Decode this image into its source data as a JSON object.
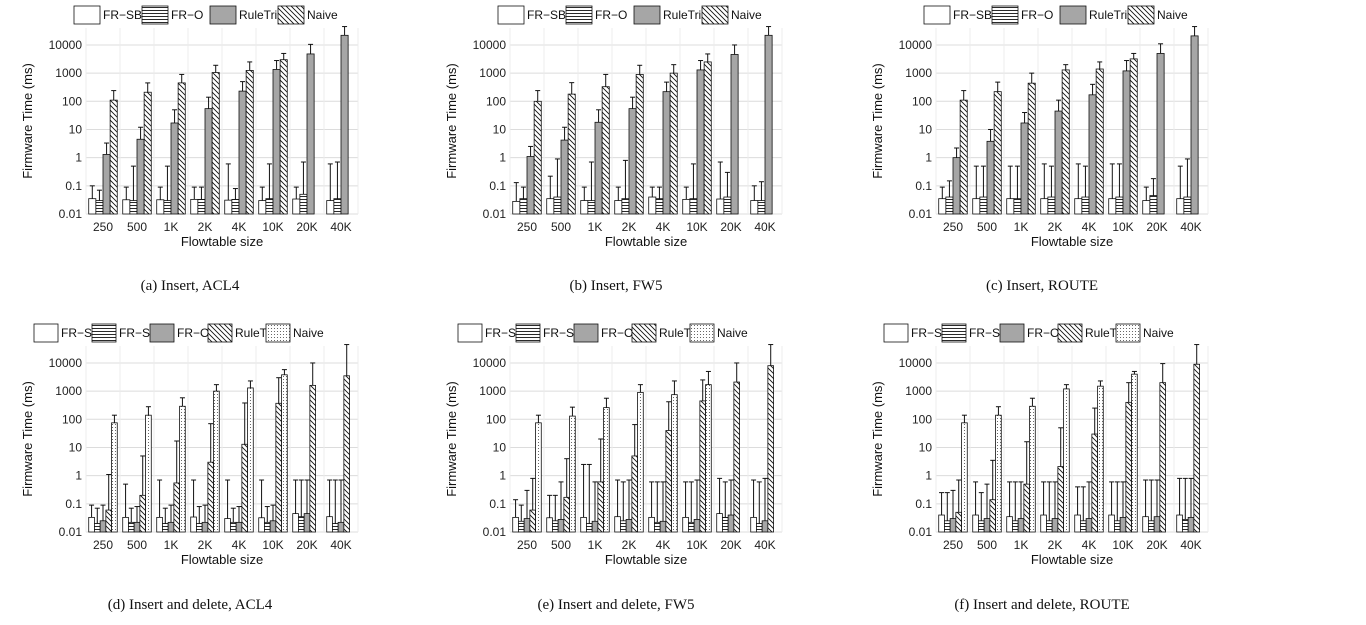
{
  "chart_data": [
    {
      "type": "bar",
      "caption": "(a) Insert, ACL4",
      "ylabel": "Firmware Time (ms)",
      "xlabel": "Flowtable size",
      "yscale": "log",
      "ylim": [
        0.01,
        40000
      ],
      "yticks": [
        "0.01",
        "0.1",
        "1",
        "10",
        "100",
        "1000",
        "10000"
      ],
      "grid": true,
      "legend_position": "top",
      "categories": [
        "250",
        "500",
        "1K",
        "2K",
        "4K",
        "10K",
        "20K",
        "40K"
      ],
      "series": [
        {
          "name": "FR−SB",
          "pattern": "white",
          "values": [
            0.035,
            0.032,
            0.032,
            0.033,
            0.031,
            0.03,
            0.034,
            0.03
          ],
          "err_upper": [
            0.1,
            0.09,
            0.09,
            0.09,
            0.6,
            0.09,
            0.09,
            0.6
          ]
        },
        {
          "name": "FR−O",
          "pattern": "horizontal",
          "values": [
            0.03,
            0.03,
            0.03,
            0.033,
            0.033,
            0.035,
            0.05,
            0.035
          ],
          "err_upper": [
            0.07,
            0.5,
            0.5,
            0.09,
            0.08,
            0.6,
            0.7,
            0.7
          ]
        },
        {
          "name": "RuleTris",
          "pattern": "gray",
          "values": [
            1.3,
            4.5,
            17,
            55,
            230,
            1350,
            4800,
            22000
          ],
          "err_upper": [
            3.3,
            12,
            50,
            140,
            500,
            2800,
            10500,
            45000
          ]
        },
        {
          "name": "Naive",
          "pattern": "diagonal",
          "values": [
            110,
            210,
            450,
            1050,
            1250,
            3000,
            null,
            null
          ],
          "err_upper": [
            240,
            450,
            900,
            1900,
            2500,
            5000,
            null,
            null
          ]
        }
      ]
    },
    {
      "type": "bar",
      "caption": "(b) Insert, FW5",
      "ylabel": "Firmware Time (ms)",
      "xlabel": "Flowtable size",
      "yscale": "log",
      "ylim": [
        0.01,
        40000
      ],
      "yticks": [
        "0.01",
        "0.1",
        "1",
        "10",
        "100",
        "1000",
        "10000"
      ],
      "grid": true,
      "legend_position": "top",
      "categories": [
        "250",
        "500",
        "1K",
        "2K",
        "4K",
        "10K",
        "20K",
        "40K"
      ],
      "series": [
        {
          "name": "FR−SB",
          "pattern": "white",
          "values": [
            0.028,
            0.035,
            0.03,
            0.03,
            0.04,
            0.033,
            0.034,
            0.03
          ],
          "err_upper": [
            0.13,
            0.22,
            0.09,
            0.09,
            0.09,
            0.09,
            0.7,
            0.1
          ]
        },
        {
          "name": "FR−O",
          "pattern": "horizontal",
          "values": [
            0.035,
            0.04,
            0.03,
            0.035,
            0.035,
            0.035,
            0.04,
            0.03
          ],
          "err_upper": [
            0.09,
            0.9,
            0.7,
            0.8,
            0.09,
            0.6,
            0.3,
            0.14
          ]
        },
        {
          "name": "RuleTris",
          "pattern": "gray",
          "values": [
            1.1,
            4.2,
            18,
            55,
            220,
            1300,
            4600,
            22000
          ],
          "err_upper": [
            2.5,
            12,
            50,
            140,
            480,
            2800,
            10000,
            45000
          ]
        },
        {
          "name": "Naive",
          "pattern": "diagonal",
          "values": [
            100,
            180,
            330,
            900,
            1000,
            2500,
            null,
            null
          ],
          "err_upper": [
            240,
            460,
            900,
            1900,
            2000,
            4800,
            null,
            null
          ]
        }
      ]
    },
    {
      "type": "bar",
      "caption": "(c) Insert, ROUTE",
      "ylabel": "Firmware Time (ms)",
      "xlabel": "Flowtable size",
      "yscale": "log",
      "ylim": [
        0.01,
        40000
      ],
      "yticks": [
        "0.01",
        "0.1",
        "1",
        "10",
        "100",
        "1000",
        "10000"
      ],
      "grid": true,
      "legend_position": "top",
      "categories": [
        "250",
        "500",
        "1K",
        "2K",
        "4K",
        "10K",
        "20K",
        "40K"
      ],
      "series": [
        {
          "name": "FR−SB",
          "pattern": "white",
          "values": [
            0.035,
            0.035,
            0.035,
            0.035,
            0.035,
            0.035,
            0.03,
            0.035
          ],
          "err_upper": [
            0.09,
            0.5,
            0.5,
            0.6,
            0.6,
            0.6,
            0.09,
            0.5
          ]
        },
        {
          "name": "FR−O",
          "pattern": "horizontal",
          "values": [
            0.04,
            0.04,
            0.035,
            0.04,
            0.04,
            0.04,
            0.045,
            0.04
          ],
          "err_upper": [
            0.15,
            0.5,
            0.5,
            0.5,
            0.5,
            0.6,
            0.18,
            0.9
          ]
        },
        {
          "name": "RuleTris",
          "pattern": "gray",
          "values": [
            1.0,
            3.8,
            17,
            45,
            170,
            1200,
            5000,
            21000
          ],
          "err_upper": [
            2.2,
            10,
            40,
            110,
            400,
            2800,
            11000,
            45000
          ]
        },
        {
          "name": "Naive",
          "pattern": "diagonal",
          "values": [
            110,
            220,
            440,
            1300,
            1400,
            3200,
            null,
            null
          ],
          "err_upper": [
            240,
            480,
            1000,
            2000,
            2500,
            5000,
            null,
            null
          ]
        }
      ]
    },
    {
      "type": "bar",
      "caption": "(d) Insert and delete, ACL4",
      "ylabel": "Firmware Time (ms)",
      "xlabel": "Flowtable size",
      "yscale": "log",
      "ylim": [
        0.01,
        40000
      ],
      "yticks": [
        "0.01",
        "0.1",
        "1",
        "10",
        "100",
        "1000",
        "10000"
      ],
      "grid": true,
      "legend_position": "top",
      "categories": [
        "250",
        "500",
        "1K",
        "2K",
        "4K",
        "10K",
        "20K",
        "40K"
      ],
      "series": [
        {
          "name": "FR−SB",
          "pattern": "white",
          "values": [
            0.033,
            0.033,
            0.033,
            0.034,
            0.03,
            0.032,
            0.045,
            0.035
          ],
          "err_upper": [
            0.09,
            0.5,
            0.7,
            0.7,
            0.7,
            0.7,
            0.7,
            0.7
          ]
        },
        {
          "name": "FR−SD",
          "pattern": "horizontal",
          "values": [
            0.02,
            0.022,
            0.02,
            0.02,
            0.022,
            0.022,
            0.035,
            0.02
          ],
          "err_upper": [
            0.07,
            0.07,
            0.07,
            0.08,
            0.07,
            0.08,
            0.7,
            0.7
          ]
        },
        {
          "name": "FR−O",
          "pattern": "gray",
          "values": [
            0.025,
            0.022,
            0.022,
            0.022,
            0.022,
            0.025,
            0.045,
            0.022
          ],
          "err_upper": [
            0.09,
            0.08,
            0.09,
            0.09,
            0.08,
            0.09,
            0.7,
            0.7
          ]
        },
        {
          "name": "RuleTris",
          "pattern": "diagonal",
          "values": [
            0.06,
            0.2,
            0.55,
            3,
            13,
            370,
            1600,
            3500
          ],
          "err_upper": [
            1.1,
            5,
            17,
            70,
            380,
            3000,
            10000,
            45000
          ]
        },
        {
          "name": "Naive",
          "pattern": "dotted",
          "values": [
            75,
            140,
            290,
            1000,
            1300,
            3800,
            null,
            null
          ],
          "err_upper": [
            140,
            280,
            580,
            1700,
            2300,
            5800,
            null,
            null
          ]
        }
      ]
    },
    {
      "type": "bar",
      "caption": "(e) Insert and delete, FW5",
      "ylabel": "Firmware Time (ms)",
      "xlabel": "Flowtable size",
      "yscale": "log",
      "ylim": [
        0.01,
        40000
      ],
      "yticks": [
        "0.01",
        "0.1",
        "1",
        "10",
        "100",
        "1000",
        "10000"
      ],
      "grid": true,
      "legend_position": "top",
      "categories": [
        "250",
        "500",
        "1K",
        "2K",
        "4K",
        "10K",
        "20K",
        "40K"
      ],
      "series": [
        {
          "name": "FR−SB",
          "pattern": "white",
          "values": [
            0.033,
            0.032,
            0.033,
            0.035,
            0.033,
            0.033,
            0.045,
            0.033
          ],
          "err_upper": [
            0.14,
            0.2,
            2.5,
            0.7,
            0.6,
            0.6,
            0.8,
            0.7
          ]
        },
        {
          "name": "FR−SD",
          "pattern": "horizontal",
          "values": [
            0.024,
            0.025,
            0.02,
            0.025,
            0.022,
            0.022,
            0.033,
            0.02
          ],
          "err_upper": [
            0.09,
            0.2,
            2.5,
            0.6,
            0.6,
            0.6,
            0.6,
            0.6
          ]
        },
        {
          "name": "FR−O",
          "pattern": "gray",
          "values": [
            0.03,
            0.028,
            0.024,
            0.028,
            0.024,
            0.028,
            0.04,
            0.025
          ],
          "err_upper": [
            0.3,
            0.6,
            0.6,
            0.7,
            0.6,
            0.7,
            0.7,
            0.8
          ]
        },
        {
          "name": "RuleTris",
          "pattern": "diagonal",
          "values": [
            0.06,
            0.17,
            0.6,
            5,
            40,
            450,
            2100,
            8000
          ],
          "err_upper": [
            0.8,
            4,
            20,
            65,
            420,
            2500,
            10000,
            45000
          ]
        },
        {
          "name": "Naive",
          "pattern": "dotted",
          "values": [
            75,
            130,
            260,
            900,
            750,
            1700,
            null,
            null
          ],
          "err_upper": [
            140,
            270,
            560,
            1700,
            2300,
            5000,
            null,
            null
          ]
        }
      ]
    },
    {
      "type": "bar",
      "caption": "(f) Insert and delete, ROUTE",
      "ylabel": "Firmware Time (ms)",
      "xlabel": "Flowtable size",
      "yscale": "log",
      "ylim": [
        0.01,
        40000
      ],
      "yticks": [
        "0.01",
        "0.1",
        "1",
        "10",
        "100",
        "1000",
        "10000"
      ],
      "grid": true,
      "legend_position": "top",
      "categories": [
        "250",
        "500",
        "1K",
        "2K",
        "4K",
        "10K",
        "20K",
        "40K"
      ],
      "series": [
        {
          "name": "FR−SB",
          "pattern": "white",
          "values": [
            0.04,
            0.04,
            0.035,
            0.04,
            0.04,
            0.04,
            0.035,
            0.04
          ],
          "err_upper": [
            0.25,
            0.6,
            0.6,
            0.6,
            0.4,
            0.6,
            0.7,
            0.8
          ]
        },
        {
          "name": "FR−SD",
          "pattern": "horizontal",
          "values": [
            0.025,
            0.025,
            0.025,
            0.025,
            0.025,
            0.025,
            0.025,
            0.028
          ],
          "err_upper": [
            0.25,
            0.25,
            0.6,
            0.6,
            0.4,
            0.6,
            0.7,
            0.8
          ]
        },
        {
          "name": "FR−O",
          "pattern": "gray",
          "values": [
            0.03,
            0.03,
            0.03,
            0.03,
            0.03,
            0.033,
            0.035,
            0.033
          ],
          "err_upper": [
            0.3,
            0.5,
            0.6,
            0.6,
            0.6,
            0.6,
            0.7,
            0.8
          ]
        },
        {
          "name": "RuleTris",
          "pattern": "diagonal",
          "values": [
            0.05,
            0.14,
            0.5,
            2.1,
            30,
            400,
            2000,
            9000
          ],
          "err_upper": [
            0.7,
            3.5,
            16,
            50,
            250,
            2000,
            9500,
            45000
          ]
        },
        {
          "name": "Naive",
          "pattern": "dotted",
          "values": [
            75,
            140,
            290,
            1200,
            1500,
            4000,
            null,
            null
          ],
          "err_upper": [
            140,
            280,
            560,
            1700,
            2300,
            5000,
            null,
            null
          ]
        }
      ]
    }
  ]
}
